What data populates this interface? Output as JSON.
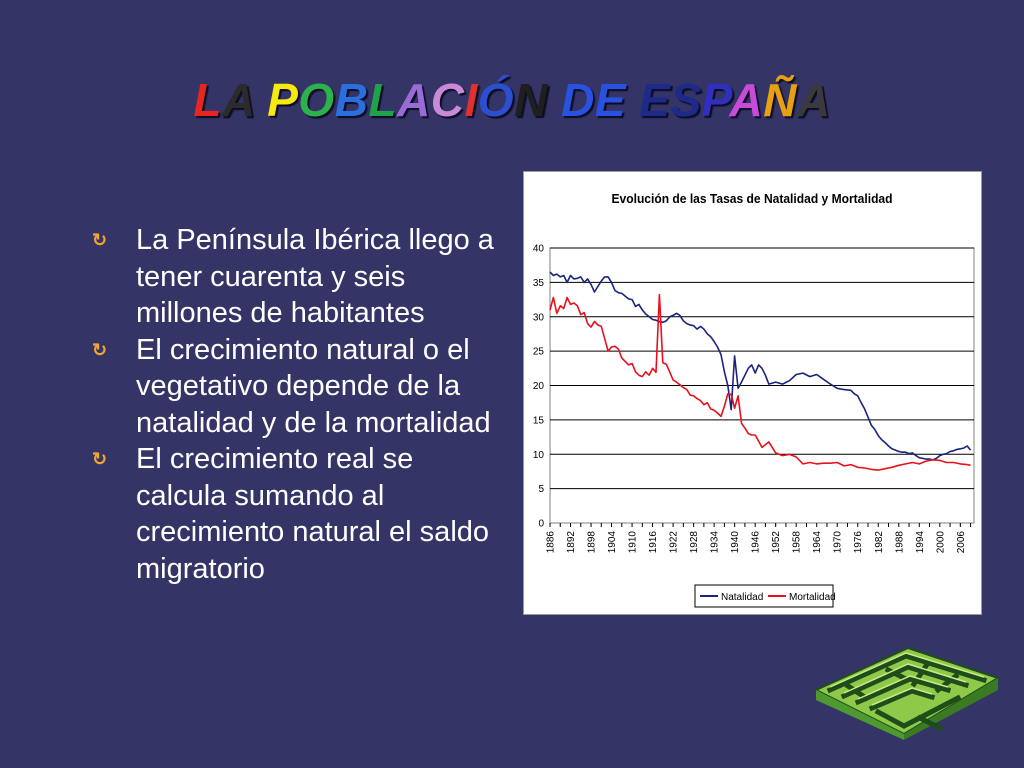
{
  "title": {
    "text": "LA POBLACIÓN DE ESPAÑA",
    "colors": [
      "#e8261f",
      "#2b2b2b",
      "#f6e90d",
      "#2bb24c",
      "#2b6ee0",
      "#1fa24a",
      "#9a6ad6",
      "#c88ad8",
      "#e03030",
      "#2b4fd0",
      "#1f1f1f",
      "#2a52e0",
      "#2a52e0",
      "#1e2a8a",
      "#1e2a8a",
      "#2f2fc0",
      "#c84ad8",
      "#e6a010",
      "#3a3a3a",
      "#1a1a1a"
    ]
  },
  "bullets": [
    {
      "text": "La Península Ibérica llego a tener cuarenta y seis millones de habitantes"
    },
    {
      "text": "El crecimiento natural o el vegetativo depende de la natalidad y de la mortalidad"
    },
    {
      "text": "El crecimiento real se calcula sumando al crecimiento natural el saldo migratorio"
    }
  ],
  "bullet_icon": "↻",
  "chart_data": {
    "type": "line",
    "title": "Evolución de las Tasas de Natalidad y Mortalidad",
    "xlabel": "",
    "ylabel": "",
    "xlim": [
      1886,
      2010
    ],
    "ylim": [
      0,
      40
    ],
    "yticks": [
      0,
      5,
      10,
      15,
      20,
      25,
      30,
      35,
      40
    ],
    "xticks": [
      1886,
      1892,
      1898,
      1904,
      1910,
      1916,
      1922,
      1928,
      1934,
      1940,
      1946,
      1952,
      1958,
      1964,
      1970,
      1976,
      1982,
      1988,
      1994,
      2000,
      2006
    ],
    "grid": "horizontal",
    "legend": "bottom-center",
    "series": [
      {
        "name": "Natalidad",
        "color": "#1a237e",
        "x": [
          1886,
          1887,
          1888,
          1889,
          1890,
          1891,
          1892,
          1893,
          1894,
          1895,
          1896,
          1897,
          1898,
          1899,
          1900,
          1901,
          1902,
          1903,
          1904,
          1905,
          1906,
          1907,
          1908,
          1909,
          1910,
          1911,
          1912,
          1913,
          1914,
          1915,
          1916,
          1917,
          1918,
          1919,
          1920,
          1921,
          1922,
          1923,
          1924,
          1925,
          1926,
          1927,
          1928,
          1929,
          1930,
          1931,
          1932,
          1933,
          1934,
          1935,
          1936,
          1937,
          1938,
          1939,
          1940,
          1941,
          1942,
          1943,
          1944,
          1945,
          1946,
          1947,
          1948,
          1949,
          1950,
          1952,
          1954,
          1956,
          1958,
          1960,
          1962,
          1964,
          1966,
          1968,
          1970,
          1972,
          1974,
          1975,
          1976,
          1977,
          1978,
          1979,
          1980,
          1981,
          1982,
          1983,
          1984,
          1985,
          1986,
          1987,
          1988,
          1989,
          1990,
          1991,
          1992,
          1993,
          1994,
          1995,
          1996,
          1997,
          1998,
          1999,
          2000,
          2001,
          2002,
          2003,
          2004,
          2005,
          2006,
          2007,
          2008,
          2009
        ],
        "values": [
          36.5,
          36,
          36.2,
          35.8,
          36,
          35,
          36,
          35.5,
          35.6,
          35.8,
          35,
          35.5,
          34.7,
          33.6,
          34.4,
          35.2,
          35.8,
          35.8,
          35,
          33.8,
          33.5,
          33.4,
          33,
          32.6,
          32.5,
          31.5,
          31.8,
          31,
          30.4,
          30,
          29.6,
          29.5,
          29.3,
          29.2,
          29.4,
          30,
          30.2,
          30.5,
          30.2,
          29.4,
          29,
          28.8,
          28.7,
          28.2,
          28.6,
          28.2,
          27.5,
          27.1,
          26.4,
          25.6,
          24.5,
          22,
          20,
          16.5,
          24.3,
          19.6,
          20.5,
          21.5,
          22.5,
          23,
          21.8,
          23,
          22.5,
          21.5,
          20.2,
          20.5,
          20.2,
          20.7,
          21.6,
          21.8,
          21.3,
          21.6,
          20.9,
          20.2,
          19.6,
          19.4,
          19.3,
          18.8,
          18.5,
          17.5,
          16.6,
          15.4,
          14.2,
          13.6,
          12.7,
          12.1,
          11.7,
          11.2,
          10.8,
          10.6,
          10.4,
          10.3,
          10.3,
          10.1,
          10.2,
          9.8,
          9.5,
          9.4,
          9.3,
          9.3,
          9.2,
          9.4,
          9.8,
          10,
          10.1,
          10.4,
          10.5,
          10.7,
          10.8,
          10.9,
          11.2,
          10.6
        ]
      },
      {
        "name": "Mortalidad",
        "color": "#e8101a",
        "x": [
          1886,
          1887,
          1888,
          1889,
          1890,
          1891,
          1892,
          1893,
          1894,
          1895,
          1896,
          1897,
          1898,
          1899,
          1900,
          1901,
          1902,
          1903,
          1904,
          1905,
          1906,
          1907,
          1908,
          1909,
          1910,
          1911,
          1912,
          1913,
          1914,
          1915,
          1916,
          1917,
          1918,
          1919,
          1920,
          1921,
          1922,
          1923,
          1924,
          1925,
          1926,
          1927,
          1928,
          1929,
          1930,
          1931,
          1932,
          1933,
          1934,
          1935,
          1936,
          1937,
          1938,
          1939,
          1940,
          1941,
          1942,
          1943,
          1944,
          1945,
          1946,
          1948,
          1950,
          1952,
          1954,
          1956,
          1958,
          1960,
          1962,
          1964,
          1966,
          1968,
          1970,
          1972,
          1974,
          1976,
          1978,
          1980,
          1982,
          1984,
          1986,
          1988,
          1990,
          1992,
          1994,
          1996,
          1998,
          2000,
          2002,
          2004,
          2006,
          2008,
          2009
        ],
        "values": [
          31,
          32.8,
          30.5,
          31.6,
          31.2,
          32.8,
          31.8,
          32,
          31.6,
          30.3,
          30.6,
          29,
          28.5,
          29.3,
          28.8,
          28.6,
          26.8,
          25,
          25.6,
          25.7,
          25.3,
          24,
          23.5,
          23,
          23.2,
          22,
          21.5,
          21.3,
          22,
          21.5,
          22.5,
          21.9,
          33.2,
          23.3,
          23.1,
          22,
          20.8,
          20.5,
          20.1,
          19.7,
          19.4,
          18.6,
          18.5,
          18.1,
          17.8,
          17.2,
          17.5,
          16.6,
          16.4,
          16,
          15.5,
          17,
          18.8,
          18.7,
          16.7,
          18.5,
          14.5,
          13.8,
          13,
          12.8,
          12.8,
          11,
          11.8,
          10.2,
          9.8,
          10,
          9.6,
          8.6,
          8.8,
          8.6,
          8.7,
          8.7,
          8.8,
          8.3,
          8.5,
          8.1,
          8,
          7.8,
          7.7,
          7.9,
          8.1,
          8.4,
          8.6,
          8.8,
          8.6,
          9,
          9.2,
          9.1,
          8.8,
          8.8,
          8.6,
          8.5,
          8.4
        ]
      }
    ]
  }
}
